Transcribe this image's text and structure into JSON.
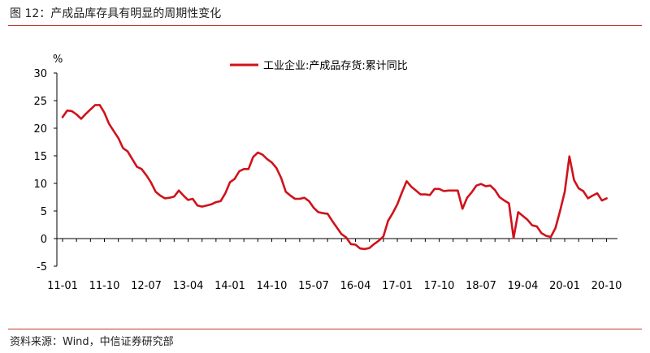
{
  "figure": {
    "title": "图 12：产成品库存具有明显的周期性变化",
    "source": "资料来源：Wind，中信证券研究部"
  },
  "colors": {
    "line": "#d0121b",
    "rule": "#c0392b",
    "axis": "#000000"
  },
  "chart_data": {
    "type": "line",
    "ylabel": "%",
    "ylim": [
      -5,
      30
    ],
    "yticks": [
      -5,
      0,
      5,
      10,
      15,
      20,
      25,
      30
    ],
    "xticklabels": [
      "11-01",
      "11-10",
      "12-07",
      "13-04",
      "14-01",
      "14-10",
      "15-07",
      "16-04",
      "17-01",
      "17-10",
      "18-07",
      "19-04",
      "20-01",
      "20-10"
    ],
    "xtick_month_index": [
      0,
      9,
      18,
      27,
      36,
      45,
      54,
      63,
      72,
      81,
      90,
      99,
      108,
      117
    ],
    "grid": false,
    "legend_position": "top-center",
    "series": [
      {
        "name": "工业企业:产成品存货:累计同比",
        "month_index": [
          0,
          1,
          2,
          3,
          4,
          5,
          6,
          7,
          8,
          9,
          10,
          11,
          12,
          13,
          14,
          15,
          16,
          17,
          18,
          19,
          20,
          21,
          22,
          23,
          24,
          25,
          26,
          27,
          28,
          29,
          30,
          31,
          32,
          33,
          34,
          35,
          36,
          37,
          38,
          39,
          40,
          41,
          42,
          43,
          44,
          45,
          46,
          47,
          48,
          49,
          50,
          51,
          52,
          53,
          54,
          55,
          56,
          57,
          58,
          59,
          60,
          61,
          62,
          63,
          64,
          65,
          66,
          67,
          68,
          69,
          70,
          71,
          72,
          73,
          74,
          75,
          76,
          77,
          78,
          79,
          80,
          81,
          82,
          83,
          84,
          85,
          86,
          87,
          88,
          89,
          90,
          91,
          92,
          93,
          94,
          95,
          96,
          97,
          98,
          99,
          100,
          101,
          102,
          103,
          104,
          105,
          106,
          107,
          108,
          109,
          110,
          111,
          112,
          113,
          114,
          115,
          116,
          117,
          118,
          119
        ],
        "values": [
          22.0,
          23.2,
          23.1,
          22.5,
          21.7,
          22.6,
          23.4,
          24.2,
          24.2,
          22.8,
          20.8,
          19.5,
          18.2,
          16.4,
          15.8,
          14.4,
          13.0,
          12.6,
          11.5,
          10.2,
          8.5,
          7.8,
          7.3,
          7.4,
          7.6,
          8.7,
          7.8,
          7.0,
          7.2,
          6.0,
          5.8,
          6.0,
          6.2,
          6.6,
          6.8,
          8.2,
          10.2,
          10.8,
          12.2,
          12.6,
          12.6,
          14.8,
          15.6,
          15.2,
          14.4,
          13.8,
          12.8,
          11.0,
          8.5,
          7.8,
          7.2,
          7.2,
          7.4,
          6.8,
          5.6,
          4.8,
          4.6,
          4.5,
          3.2,
          2.0,
          0.8,
          0.2,
          -1.0,
          -1.1,
          -1.8,
          -1.9,
          -1.7,
          -1.0,
          -0.4,
          0.4,
          3.2,
          4.6,
          6.2,
          8.4,
          10.4,
          9.4,
          8.7,
          8.0,
          8.0,
          7.9,
          9.0,
          9.0,
          8.6,
          8.7,
          8.7,
          8.7,
          5.4,
          7.4,
          8.4,
          9.6,
          9.9,
          9.5,
          9.6,
          8.8,
          7.5,
          6.9,
          6.4,
          0.1,
          4.8,
          4.1,
          3.4,
          2.4,
          2.2,
          1.0,
          0.5,
          0.3,
          1.9,
          5.0,
          8.5,
          14.9,
          10.6,
          9.1,
          8.6,
          7.3,
          7.8,
          8.2,
          6.9,
          7.3,
          null,
          null
        ]
      }
    ]
  }
}
